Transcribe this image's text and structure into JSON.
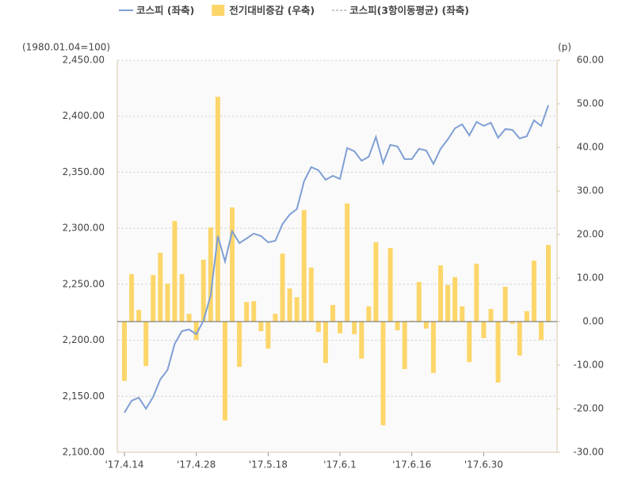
{
  "chart_data": {
    "type": "bar-line",
    "y_label": "(1980.01.04=100)",
    "y2_label": "(p)",
    "categories": [
      "'17.4.14",
      null,
      null,
      null,
      null,
      null,
      null,
      null,
      null,
      null,
      "'17.4.28",
      null,
      null,
      null,
      null,
      null,
      null,
      null,
      null,
      null,
      "'17.5.18",
      null,
      null,
      null,
      null,
      null,
      null,
      null,
      null,
      null,
      "'17.6.1",
      null,
      null,
      null,
      null,
      null,
      null,
      null,
      null,
      null,
      "'17.6.16",
      null,
      null,
      null,
      null,
      null,
      null,
      null,
      null,
      null,
      "'17.6.30",
      null,
      null,
      null,
      null,
      null,
      null,
      null,
      null,
      null
    ],
    "series": [
      {
        "name": "코스피 (좌축)",
        "type": "line",
        "color": "#7f9fd4",
        "axis": "y",
        "values": [
          2135.4,
          2146.0,
          2148.8,
          2138.9,
          2149.5,
          2165.1,
          2173.5,
          2196.9,
          2208.2,
          2209.6,
          2205.4,
          2217.4,
          2240.0,
          2293.1,
          2270.4,
          2297.3,
          2286.7,
          2290.9,
          2295.2,
          2293.1,
          2287.4,
          2288.8,
          2303.7,
          2312.2,
          2317.1,
          2341.9,
          2354.6,
          2351.8,
          2343.3,
          2346.8,
          2344.0,
          2371.6,
          2368.7,
          2360.2,
          2363.8,
          2381.5,
          2358.1,
          2374.4,
          2373.0,
          2361.7,
          2361.7,
          2370.9,
          2369.4,
          2357.4,
          2370.9,
          2379.3,
          2389.2,
          2392.8,
          2382.9,
          2394.9,
          2391.4,
          2394.2,
          2380.8,
          2388.5,
          2387.8,
          2380.1,
          2382.2,
          2396.3,
          2391.4,
          2409.8
        ]
      },
      {
        "name": "전기대비증감 (우축)",
        "type": "bar",
        "color": "#fdd66a",
        "axis": "y2",
        "values": [
          -13.6,
          10.9,
          2.7,
          -10.2,
          10.7,
          15.8,
          8.7,
          23.1,
          10.9,
          1.8,
          -4.2,
          14.2,
          21.6,
          51.6,
          -22.7,
          26.2,
          -10.4,
          4.5,
          4.7,
          -2.2,
          -6.2,
          1.8,
          15.6,
          7.6,
          5.6,
          25.6,
          12.4,
          -2.4,
          -9.5,
          3.8,
          -2.7,
          27.1,
          -2.9,
          -8.5,
          3.5,
          18.2,
          -23.8,
          16.9,
          -2.0,
          -10.9,
          0.2,
          9.1,
          -1.6,
          -11.8,
          12.9,
          8.4,
          10.2,
          3.5,
          -9.3,
          13.3,
          -3.8,
          2.9,
          -14.0,
          8.0,
          -0.5,
          -7.8,
          2.4,
          14.0,
          -4.2,
          17.6
        ]
      },
      {
        "name": "코스피(3항이동평균) (좌축)",
        "type": "line",
        "color": "#c8c8c8",
        "axis": "y",
        "visible": false,
        "values": [
          null,
          null,
          null,
          null,
          null,
          null,
          null,
          null,
          null,
          null,
          null,
          null,
          null,
          null,
          null,
          null,
          null,
          null,
          null,
          null,
          null,
          null,
          null,
          null,
          null,
          null,
          null,
          null,
          null,
          null,
          null,
          null,
          null,
          null,
          null,
          null,
          null,
          null,
          null,
          null,
          null,
          null,
          null,
          null,
          null,
          null,
          null,
          null,
          null,
          null,
          null,
          null,
          null,
          null,
          null,
          null,
          null,
          null,
          null,
          null
        ]
      }
    ],
    "ylim": [
      2100,
      2450
    ],
    "yticks": [
      {
        "value": 2100,
        "label": "2,100.00"
      },
      {
        "value": 2150,
        "label": "2,150.00"
      },
      {
        "value": 2200,
        "label": "2,200.00"
      },
      {
        "value": 2250,
        "label": "2,250.00"
      },
      {
        "value": 2300,
        "label": "2,300.00"
      },
      {
        "value": 2350,
        "label": "2,350.00"
      },
      {
        "value": 2400,
        "label": "2,400.00"
      },
      {
        "value": 2450,
        "label": "2,450.00"
      }
    ],
    "y2lim": [
      -30,
      60
    ],
    "y2ticks": [
      {
        "value": -30,
        "label": "-30.00"
      },
      {
        "value": -20,
        "label": "-20.00"
      },
      {
        "value": -10,
        "label": "-10.00"
      },
      {
        "value": 0,
        "label": "0.00"
      },
      {
        "value": 10,
        "label": "10.00"
      },
      {
        "value": 20,
        "label": "20.00"
      },
      {
        "value": 30,
        "label": "30.00"
      },
      {
        "value": 40,
        "label": "40.00"
      },
      {
        "value": 50,
        "label": "50.00"
      },
      {
        "value": 60,
        "label": "60.00"
      }
    ],
    "grid": true
  }
}
